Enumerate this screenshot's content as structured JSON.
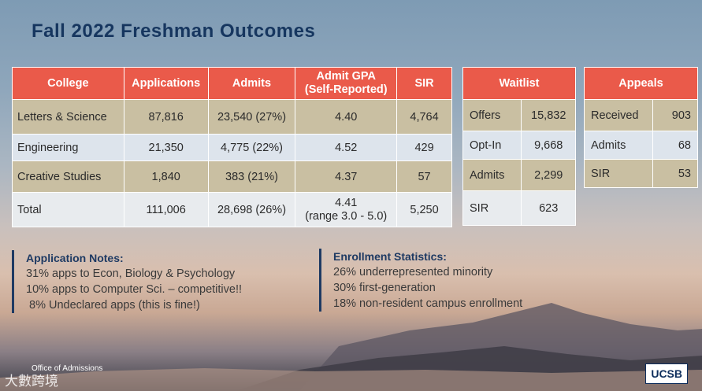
{
  "title": "Fall 2022 Freshman Outcomes",
  "main_table": {
    "headers": [
      "College",
      "Applications",
      "Admits",
      "Admit GPA",
      "SIR"
    ],
    "gpa_subheader": "(Self-Reported)",
    "rows": [
      {
        "college": "Letters & Science",
        "applications": "87,816",
        "admits": "23,540 (27%)",
        "gpa": "4.40",
        "sir": "4,764"
      },
      {
        "college": "Engineering",
        "applications": "21,350",
        "admits": "4,775 (22%)",
        "gpa": "4.52",
        "sir": "429"
      },
      {
        "college": "Creative Studies",
        "applications": "1,840",
        "admits": "383 (21%)",
        "gpa": "4.37",
        "sir": "57"
      },
      {
        "college": "Total",
        "applications": "111,006",
        "admits": "28,698 (26%)",
        "gpa": "4.41",
        "gpa_range": "(range 3.0 - 5.0)",
        "sir": "5,250"
      }
    ]
  },
  "waitlist": {
    "header": "Waitlist",
    "rows": [
      {
        "label": "Offers",
        "value": "15,832"
      },
      {
        "label": "Opt-In",
        "value": "9,668"
      },
      {
        "label": "Admits",
        "value": "2,299"
      },
      {
        "label": "SIR",
        "value": "623"
      }
    ]
  },
  "appeals": {
    "header": "Appeals",
    "rows": [
      {
        "label": "Received",
        "value": "903"
      },
      {
        "label": "Admits",
        "value": "68"
      },
      {
        "label": "SIR",
        "value": "53"
      }
    ]
  },
  "application_notes": {
    "heading": "Application Notes:",
    "lines": [
      "31% apps to Econ, Biology & Psychology",
      "10% apps to Computer Sci. – competitive!!",
      " 8% Undeclared apps (this is fine!)"
    ]
  },
  "enrollment_stats": {
    "heading": "Enrollment Statistics:",
    "lines": [
      "26% underrepresented minority",
      "30% first-generation",
      "18% non-resident campus enrollment"
    ]
  },
  "footer": "Office of Admissions",
  "watermark": "大數跨境",
  "logo": "UCSB"
}
